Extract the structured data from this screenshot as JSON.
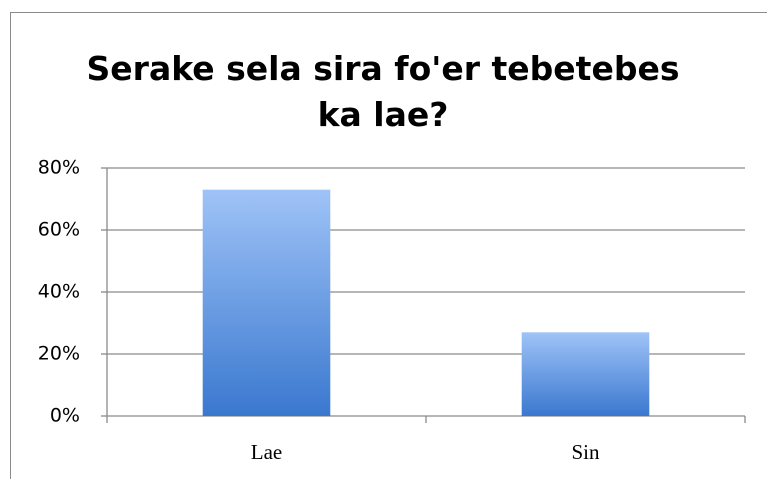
{
  "chart_data": {
    "type": "bar",
    "title": "Serake sela sira fo'er tebetebes ka lae?",
    "categories": [
      "Lae",
      "Sin"
    ],
    "values": [
      73,
      27
    ],
    "color": [
      "#9fc3f7",
      "#3a78cf"
    ],
    "ylim": [
      0,
      80
    ],
    "yticks": [
      {
        "value": 0,
        "label": "0%"
      },
      {
        "value": 20,
        "label": "20%"
      },
      {
        "value": 40,
        "label": "40%"
      },
      {
        "value": 60,
        "label": "60%"
      },
      {
        "value": 80,
        "label": "80%"
      }
    ],
    "grid": true
  }
}
